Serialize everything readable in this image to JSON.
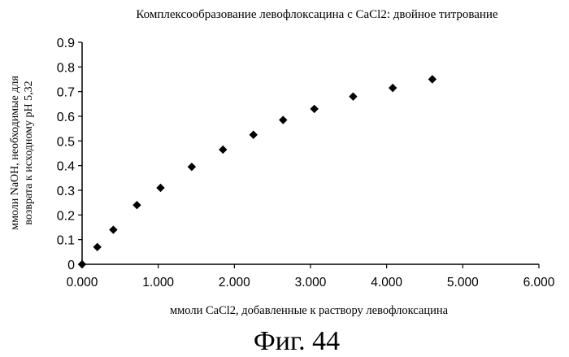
{
  "chart_data": {
    "type": "scatter",
    "title": "Комплексообразование левофлоксацина с CaCl2: двойное титрование",
    "xlabel": "ммоли CaCl2, добавленные к раствору левофлоксацина",
    "ylabel_line1": "ммоли NaOH, необходимые для",
    "ylabel_line2": "возврата к исходному pH 5,32",
    "xlim": [
      0,
      6
    ],
    "ylim": [
      0,
      0.9
    ],
    "x_ticks": [
      "0.000",
      "1.000",
      "2.000",
      "3.000",
      "4.000",
      "5.000",
      "6.000"
    ],
    "y_ticks": [
      "0",
      "0.1",
      "0.2",
      "0.3",
      "0.4",
      "0.5",
      "0.6",
      "0.7",
      "0.8",
      "0.9"
    ],
    "grid": false,
    "marker": "diamond",
    "marker_color": "#000000",
    "x": [
      0.0,
      0.2,
      0.41,
      0.72,
      1.03,
      1.44,
      1.85,
      2.25,
      2.64,
      3.05,
      3.56,
      4.08,
      4.6
    ],
    "y": [
      0.0,
      0.07,
      0.14,
      0.24,
      0.31,
      0.395,
      0.465,
      0.525,
      0.585,
      0.63,
      0.68,
      0.715,
      0.75
    ]
  },
  "figure_caption": "Фиг. 44"
}
